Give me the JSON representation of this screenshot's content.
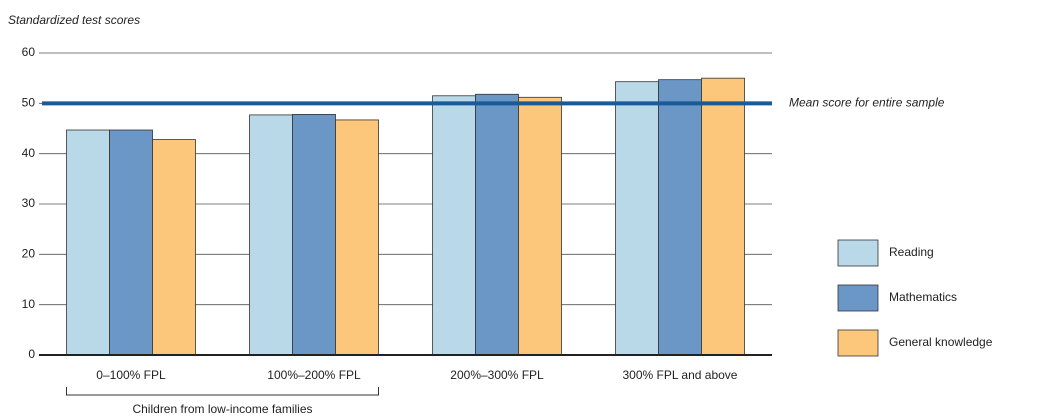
{
  "chart_data": {
    "type": "bar",
    "ylabel": "Standardized test scores",
    "categories": [
      "0–100% FPL",
      "100%–200% FPL",
      "200%–300% FPL",
      "300% FPL and above"
    ],
    "series": [
      {
        "name": "Reading",
        "color": "#b9d9e8",
        "values": [
          44.7,
          47.7,
          51.5,
          54.3
        ]
      },
      {
        "name": "Mathematics",
        "color": "#6a97c6",
        "values": [
          44.7,
          47.8,
          51.8,
          54.7
        ]
      },
      {
        "name": "General knowledge",
        "color": "#fcc77a",
        "values": [
          42.8,
          46.7,
          51.2,
          55.0
        ]
      }
    ],
    "ylim": [
      0,
      60
    ],
    "yticks": [
      0,
      10,
      20,
      30,
      40,
      50,
      60
    ],
    "grid": true,
    "reference_line": {
      "value": 50,
      "label": "Mean score for entire sample",
      "color": "#1a5a96"
    },
    "bracket_label": "Children from low-income families",
    "legend": "right"
  }
}
